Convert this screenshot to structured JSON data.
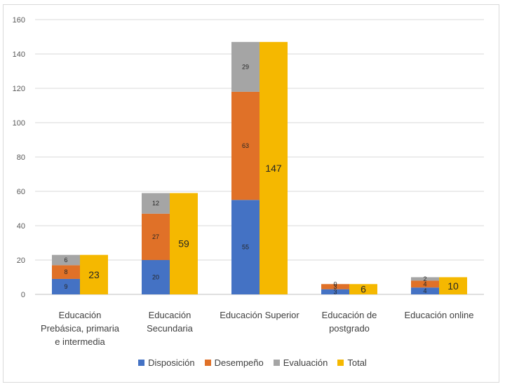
{
  "chart_data": {
    "type": "bar",
    "stacked": true,
    "categories": [
      "Educación Prebásica, primaria e intermedia",
      "Educación Secundaria",
      "Educación Superior",
      "Educación de postgrado",
      "Educación online"
    ],
    "category_lines": [
      [
        "Educación",
        "Prebásica, primaria",
        "e intermedia"
      ],
      [
        "Educación",
        "Secundaria"
      ],
      [
        "Educación Superior"
      ],
      [
        "Educación de",
        "postgrado"
      ],
      [
        "Educación online"
      ]
    ],
    "series": [
      {
        "name": "Disposición",
        "values": [
          9,
          20,
          55,
          3,
          4
        ],
        "color": "#4472c4",
        "stack": "components"
      },
      {
        "name": "Desempeño",
        "values": [
          8,
          27,
          63,
          3,
          4
        ],
        "color": "#e07128",
        "stack": "components"
      },
      {
        "name": "Evaluación",
        "values": [
          6,
          12,
          29,
          0,
          2
        ],
        "color": "#a5a5a5",
        "stack": "components"
      },
      {
        "name": "Total",
        "values": [
          23,
          59,
          147,
          6,
          10
        ],
        "color": "#f5b800",
        "stack": "total"
      }
    ],
    "ylim": [
      0,
      160
    ],
    "yticks": [
      0,
      20,
      40,
      60,
      80,
      100,
      120,
      140,
      160
    ],
    "grid": true,
    "legend": "bottom",
    "title": "",
    "xlabel": "",
    "ylabel": ""
  }
}
